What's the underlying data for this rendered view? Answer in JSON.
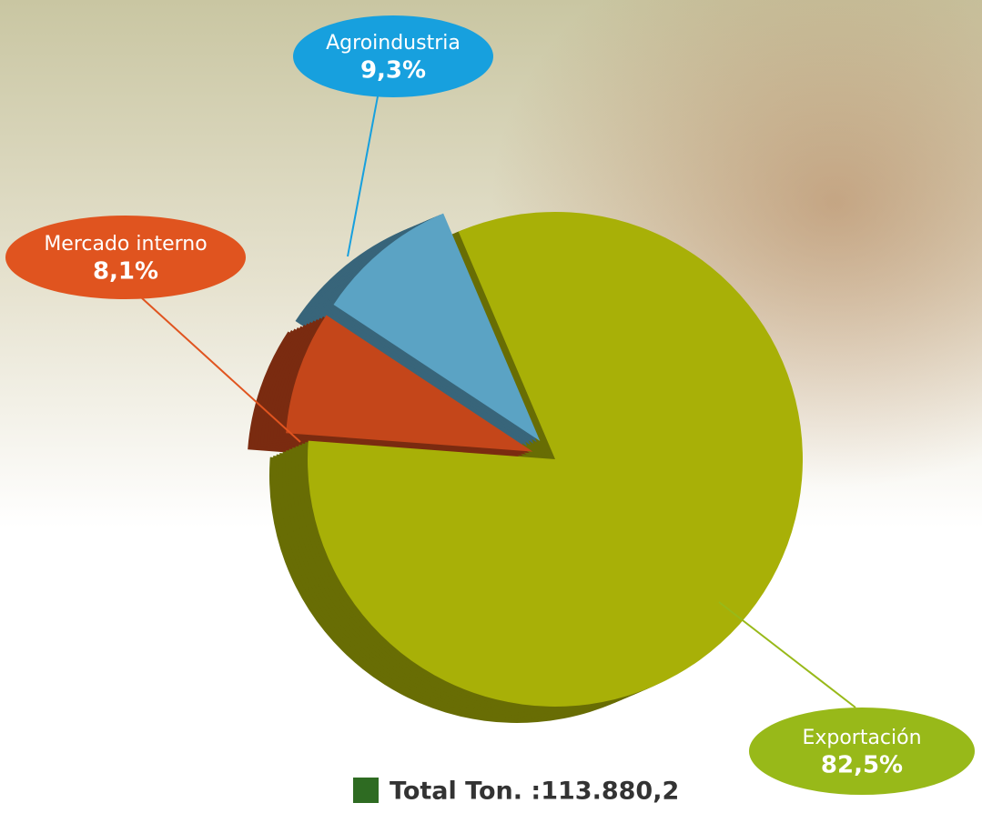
{
  "chart_data": {
    "type": "pie",
    "categories": [
      "Exportación",
      "Mercado interno",
      "Agroindustria"
    ],
    "values": [
      82.5,
      8.1,
      9.3
    ],
    "value_labels": [
      "82,5%",
      "8,1%",
      "9,3%"
    ],
    "colors": [
      "#a8b007",
      "#c4461a",
      "#5ba3c4"
    ],
    "label_colors": [
      "#98b919",
      "#e0541f",
      "#17a0de"
    ],
    "annotation": "Total Ton. :113.880,2",
    "annotation_color": "#2e6b22"
  }
}
